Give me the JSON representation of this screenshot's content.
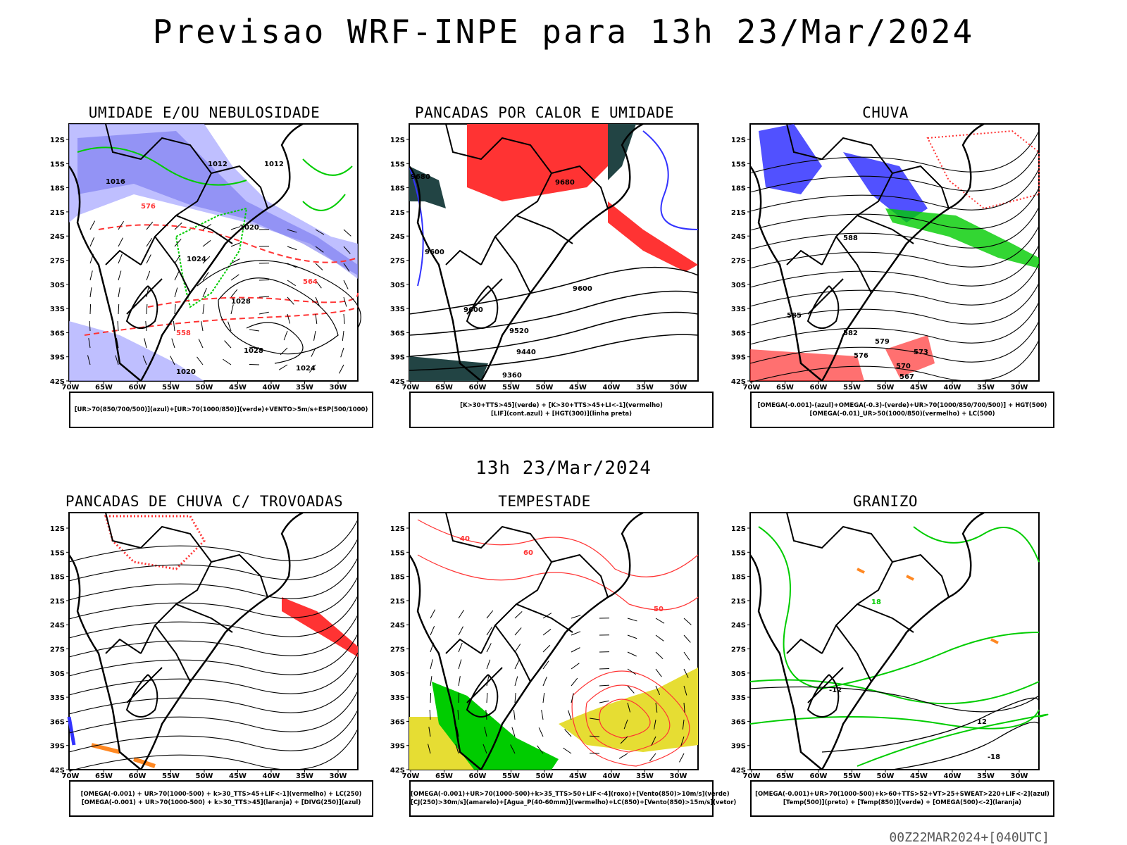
{
  "title": "Previsao WRF-INPE  para 13h 23/Mar/2024",
  "subtitle": "13h 23/Mar/2024",
  "footer": "00Z22MAR2024+[040UTC]",
  "axes": {
    "lat_labels": [
      "12S",
      "15S",
      "18S",
      "21S",
      "24S",
      "27S",
      "30S",
      "33S",
      "36S",
      "39S",
      "42S"
    ],
    "lon_labels": [
      "70W",
      "65W",
      "60W",
      "55W",
      "50W",
      "45W",
      "40W",
      "35W",
      "30W"
    ]
  },
  "panels": [
    {
      "title": "UMIDADE E/OU NEBULOSIDADE",
      "legend": [
        "[UR>70(850/700/500)](azul)+[UR>70(1000/850)](verde)+VENTO>5m/s+ESP(500/1000)"
      ],
      "contour_labels": [
        "1012",
        "1012",
        "1016",
        "1020",
        "1024",
        "1028",
        "1028",
        "1020",
        "1024",
        "576",
        "564",
        "558"
      ]
    },
    {
      "title": "PANCADAS POR CALOR E UMIDADE",
      "legend": [
        "[K>30+TTS>45](verde) + [K>30+TTS>45+LI<-1](vermelho)",
        "[LIF](cont.azul) + [HGT(300)](linha preta)"
      ],
      "contour_labels": [
        "9680",
        "9680",
        "9600",
        "9600",
        "9520",
        "9440",
        "9360",
        "9600"
      ]
    },
    {
      "title": "CHUVA",
      "legend": [
        "[OMEGA(-0.001)-(azul)+OMEGA(-0.3)-(verde)+UR>70(1000/850/700/500)] + HGT(500)",
        "[OMEGA(-0.01)_UR>50(1000/850)(vermelho) + LC(500)"
      ],
      "contour_labels": [
        "588",
        "585",
        "582",
        "579",
        "576",
        "573",
        "570",
        "567"
      ]
    },
    {
      "title": "PANCADAS DE CHUVA C/ TROVOADAS",
      "legend": [
        "[OMEGA(-0.001) + UR>70(1000-500) + k>30_TTS>45+LIF<-1](vermelho) + LC(250)",
        "[OMEGA(-0.001) + UR>70(1000-500) + k>30_TTS>45](laranja) + [DIVG(250)](azul)"
      ],
      "contour_labels": []
    },
    {
      "title": "TEMPESTADE",
      "legend": [
        "[OMEGA(-0.001)+UR>70(1000-500)+k>35_TTS>50+LIF<-4](roxo)+[Vento(850)>10m/s](verde)",
        "[CJ(250)>30m/s](amarelo)+[Agua_P(40-60mm)](vermelho)+LC(850)+[Vento(850)>15m/s](vetor)"
      ],
      "contour_labels": [
        "40",
        "50",
        "60"
      ]
    },
    {
      "title": "GRANIZO",
      "legend": [
        "[OMEGA(-0.001)+UR>70(1000-500)+k>60+TTS>52+VT>25+SWEAT>220+LIF<-2](azul)",
        "[Temp(500)](preto) + [Temp(850)](verde) + [OMEGA(500)<-2](laranja)"
      ],
      "contour_labels": [
        "-12",
        "-18",
        "12",
        "18"
      ]
    }
  ],
  "colors": {
    "blue": "#3333ff",
    "lavender": "#aaaaff",
    "green": "#00cc00",
    "red": "#ff3333",
    "darkteal": "#224444",
    "orange": "#ff8822",
    "yellow": "#e6dd33",
    "black": "#000000"
  }
}
